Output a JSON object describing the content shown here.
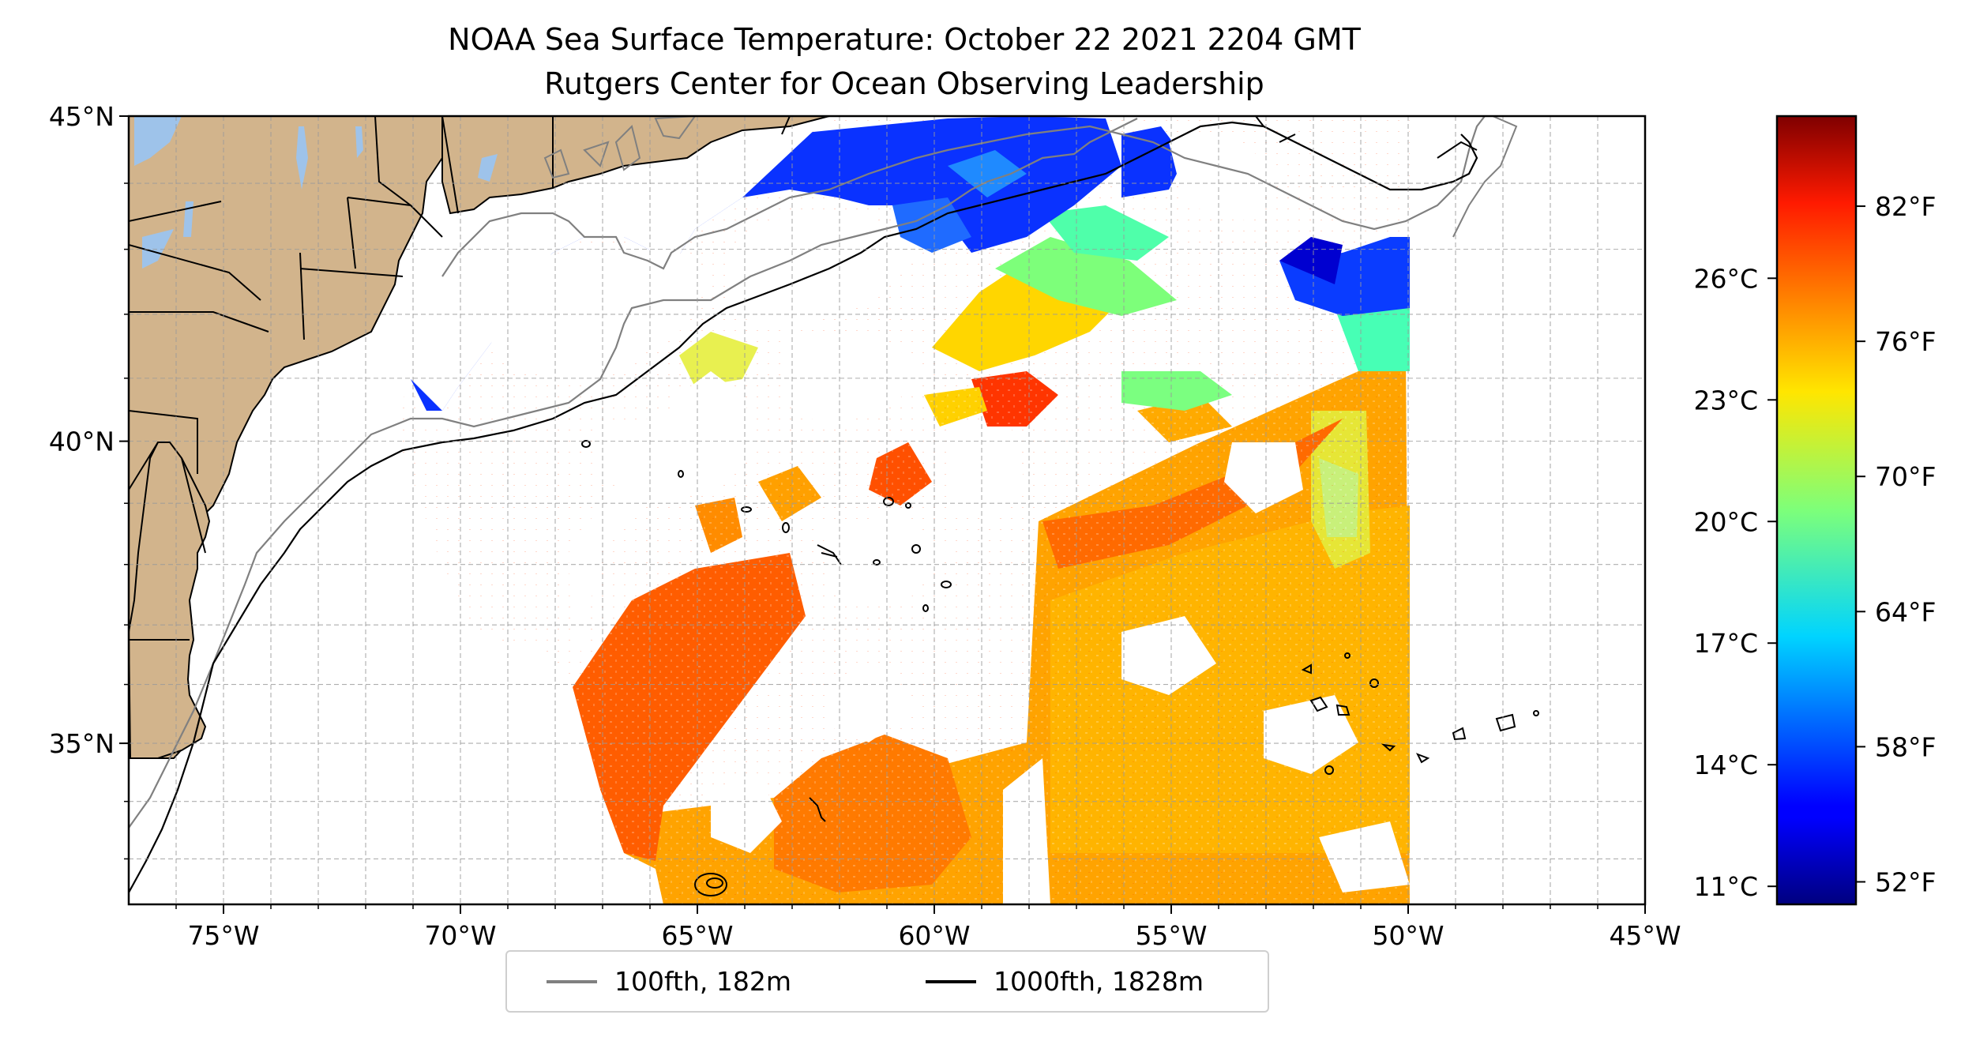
{
  "map": {
    "title": "NOAA Sea Surface Temperature: October 22 2021 2204 GMT",
    "subtitle": "Rutgers Center for Ocean Observing Leadership",
    "lon_range": [
      -77,
      -45
    ],
    "lat_range": [
      32.2,
      45
    ],
    "lon_tick_labels": [
      "75°W",
      "70°W",
      "65°W",
      "60°W",
      "55°W",
      "50°W",
      "45°W"
    ],
    "lat_tick_labels": [
      "35°N",
      "40°N",
      "45°N"
    ],
    "gridlines": "dashed, every 1°",
    "land_color": "#d2b48c",
    "lake_color": "#9ec3ea",
    "regions": [
      "Gulf of Maine / Nova Scotia shelf (cold, blue)",
      "Slope sea (cyan-yellow)",
      "Gulf Stream and Sargasso Sea (orange-red)",
      "Cloud gaps (white, no data)"
    ]
  },
  "colorbar": {
    "colormap": "jet",
    "range_f": [
      51,
      86
    ],
    "celsius_labels": [
      "11°C",
      "14°C",
      "17°C",
      "20°C",
      "23°C",
      "26°C"
    ],
    "fahrenheit_labels": [
      "52°F",
      "58°F",
      "64°F",
      "70°F",
      "76°F",
      "82°F"
    ]
  },
  "legend": {
    "placement": "bottom-center",
    "items": [
      {
        "label": "100fth, 182m",
        "color": "#808080"
      },
      {
        "label": "1000fth, 1828m",
        "color": "#000000"
      }
    ]
  }
}
